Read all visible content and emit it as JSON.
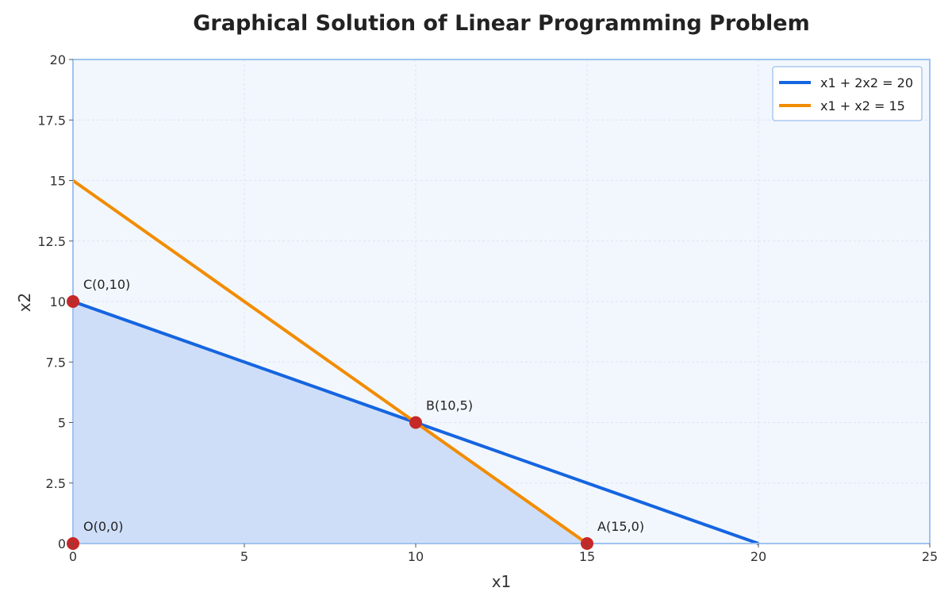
{
  "chart_data": {
    "type": "line",
    "title": "Graphical Solution of Linear Programming Problem",
    "xlabel": "x1",
    "ylabel": "x2",
    "xlim": [
      0,
      25
    ],
    "ylim": [
      0,
      20
    ],
    "x_ticks": [
      "0",
      "5",
      "10",
      "15",
      "20",
      "25"
    ],
    "y_ticks": [
      "0",
      "2.5",
      "5",
      "7.5",
      "10",
      "12.5",
      "15",
      "17.5",
      "20"
    ],
    "grid": true,
    "legend_position": "top-right",
    "series": [
      {
        "name": "x1 + 2x2 = 20",
        "color": "#1565e0",
        "points": [
          {
            "x": 0,
            "y": 10
          },
          {
            "x": 20,
            "y": 0
          }
        ]
      },
      {
        "name": "x1 + x2 = 15",
        "color": "#f28c00",
        "points": [
          {
            "x": 0,
            "y": 15
          },
          {
            "x": 15,
            "y": 0
          }
        ]
      }
    ],
    "feasible_region": {
      "color": "#cfdef8",
      "vertices": [
        {
          "x": 0,
          "y": 0
        },
        {
          "x": 0,
          "y": 10
        },
        {
          "x": 10,
          "y": 5
        },
        {
          "x": 15,
          "y": 0
        }
      ]
    },
    "corner_points": [
      {
        "label": "O(0,0)",
        "x": 0,
        "y": 0
      },
      {
        "label": "C(0,10)",
        "x": 0,
        "y": 10
      },
      {
        "label": "B(10,5)",
        "x": 10,
        "y": 5
      },
      {
        "label": "A(15,0)",
        "x": 15,
        "y": 0
      }
    ],
    "point_color": "#c62828",
    "plot_background": "#f2f7fd",
    "frame_color": "#9fc3ef"
  }
}
